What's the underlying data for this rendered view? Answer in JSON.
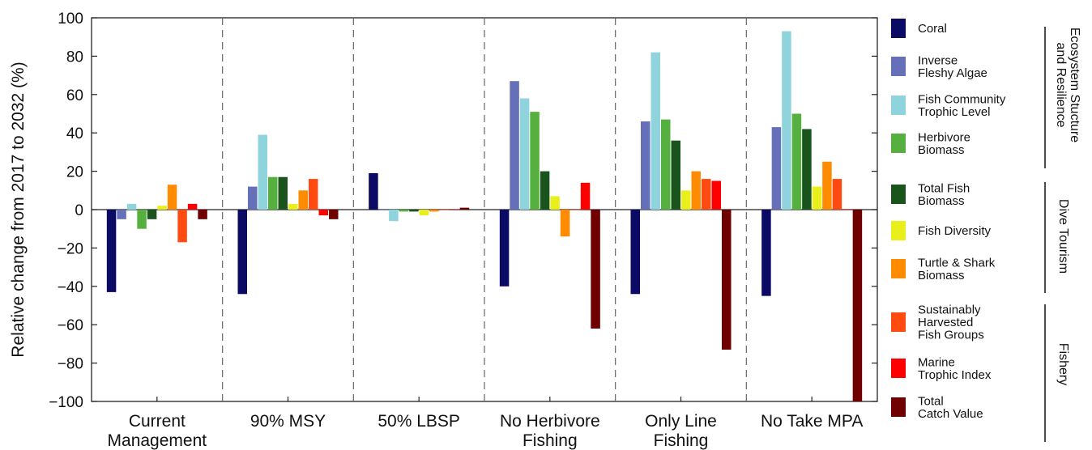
{
  "chart_data": {
    "type": "bar",
    "ylabel": "Relative change from 2017 to 2032 (%)",
    "xlabel": "",
    "ylim": [
      -100,
      100
    ],
    "yticks": [
      -100,
      -80,
      -60,
      -40,
      -20,
      0,
      20,
      40,
      60,
      80,
      100
    ],
    "ytick_labels": [
      "−100",
      "−80",
      "−60",
      "−40",
      "−20",
      "0",
      "20",
      "40",
      "60",
      "80",
      "100"
    ],
    "grid": false,
    "legend_position": "right",
    "categories": [
      {
        "lines": [
          "Current",
          "Management"
        ]
      },
      {
        "lines": [
          "90% MSY"
        ]
      },
      {
        "lines": [
          "50% LBSP"
        ]
      },
      {
        "lines": [
          "No Herbivore",
          "Fishing"
        ]
      },
      {
        "lines": [
          "Only Line",
          "Fishing"
        ]
      },
      {
        "lines": [
          "No Take MPA"
        ]
      }
    ],
    "series": [
      {
        "name": "Coral",
        "legend_lines": [
          "Coral"
        ],
        "color": "#0b0b66",
        "values": [
          -43,
          -44,
          19,
          -40,
          -44,
          -45
        ]
      },
      {
        "name": "Inverse Fleshy Algae",
        "legend_lines": [
          "Inverse",
          "Fleshy Algae"
        ],
        "color": "#6670b8",
        "values": [
          -5,
          12,
          0,
          67,
          46,
          43
        ]
      },
      {
        "name": "Fish Community Trophic Level",
        "legend_lines": [
          "Fish Community",
          "Trophic Level"
        ],
        "color": "#8fd3dc",
        "values": [
          3,
          39,
          -6,
          58,
          82,
          93
        ]
      },
      {
        "name": "Herbivore Biomass",
        "legend_lines": [
          "Herbivore",
          "Biomass"
        ],
        "color": "#56b03f",
        "values": [
          -10,
          17,
          -1,
          51,
          47,
          50
        ]
      },
      {
        "name": "Total Fish Biomass",
        "legend_lines": [
          "Total Fish",
          "Biomass"
        ],
        "color": "#19541c",
        "values": [
          -5,
          17,
          -1,
          20,
          36,
          42
        ]
      },
      {
        "name": "Fish Diversity",
        "legend_lines": [
          "Fish Diversity"
        ],
        "color": "#e8ef1a",
        "values": [
          2,
          3,
          -3,
          7,
          10,
          12
        ]
      },
      {
        "name": "Turtle & Shark Biomass",
        "legend_lines": [
          "Turtle & Shark",
          "Biomass"
        ],
        "color": "#ff8c00",
        "values": [
          13,
          10,
          -1,
          -14,
          20,
          25
        ]
      },
      {
        "name": "Sustainably Harvested Fish Groups",
        "legend_lines": [
          "Sustainably",
          "Harvested",
          "Fish Groups"
        ],
        "color": "#ff4a12",
        "values": [
          -17,
          16,
          0,
          0,
          16,
          16
        ]
      },
      {
        "name": "Marine Trophic Index",
        "legend_lines": [
          "Marine",
          "Trophic Index"
        ],
        "color": "#ff0000",
        "values": [
          3,
          -3,
          0,
          14,
          15,
          0
        ]
      },
      {
        "name": "Total Catch Value",
        "legend_lines": [
          "Total",
          "Catch Value"
        ],
        "color": "#700000",
        "values": [
          -5,
          -5,
          1,
          -62,
          -73,
          -100
        ]
      }
    ],
    "groups": [
      {
        "lines": [
          "Ecosystem Stucture",
          "and Resilience"
        ]
      },
      {
        "lines": [
          "Dive Tourism"
        ]
      },
      {
        "lines": [
          "Fishery"
        ]
      }
    ]
  }
}
